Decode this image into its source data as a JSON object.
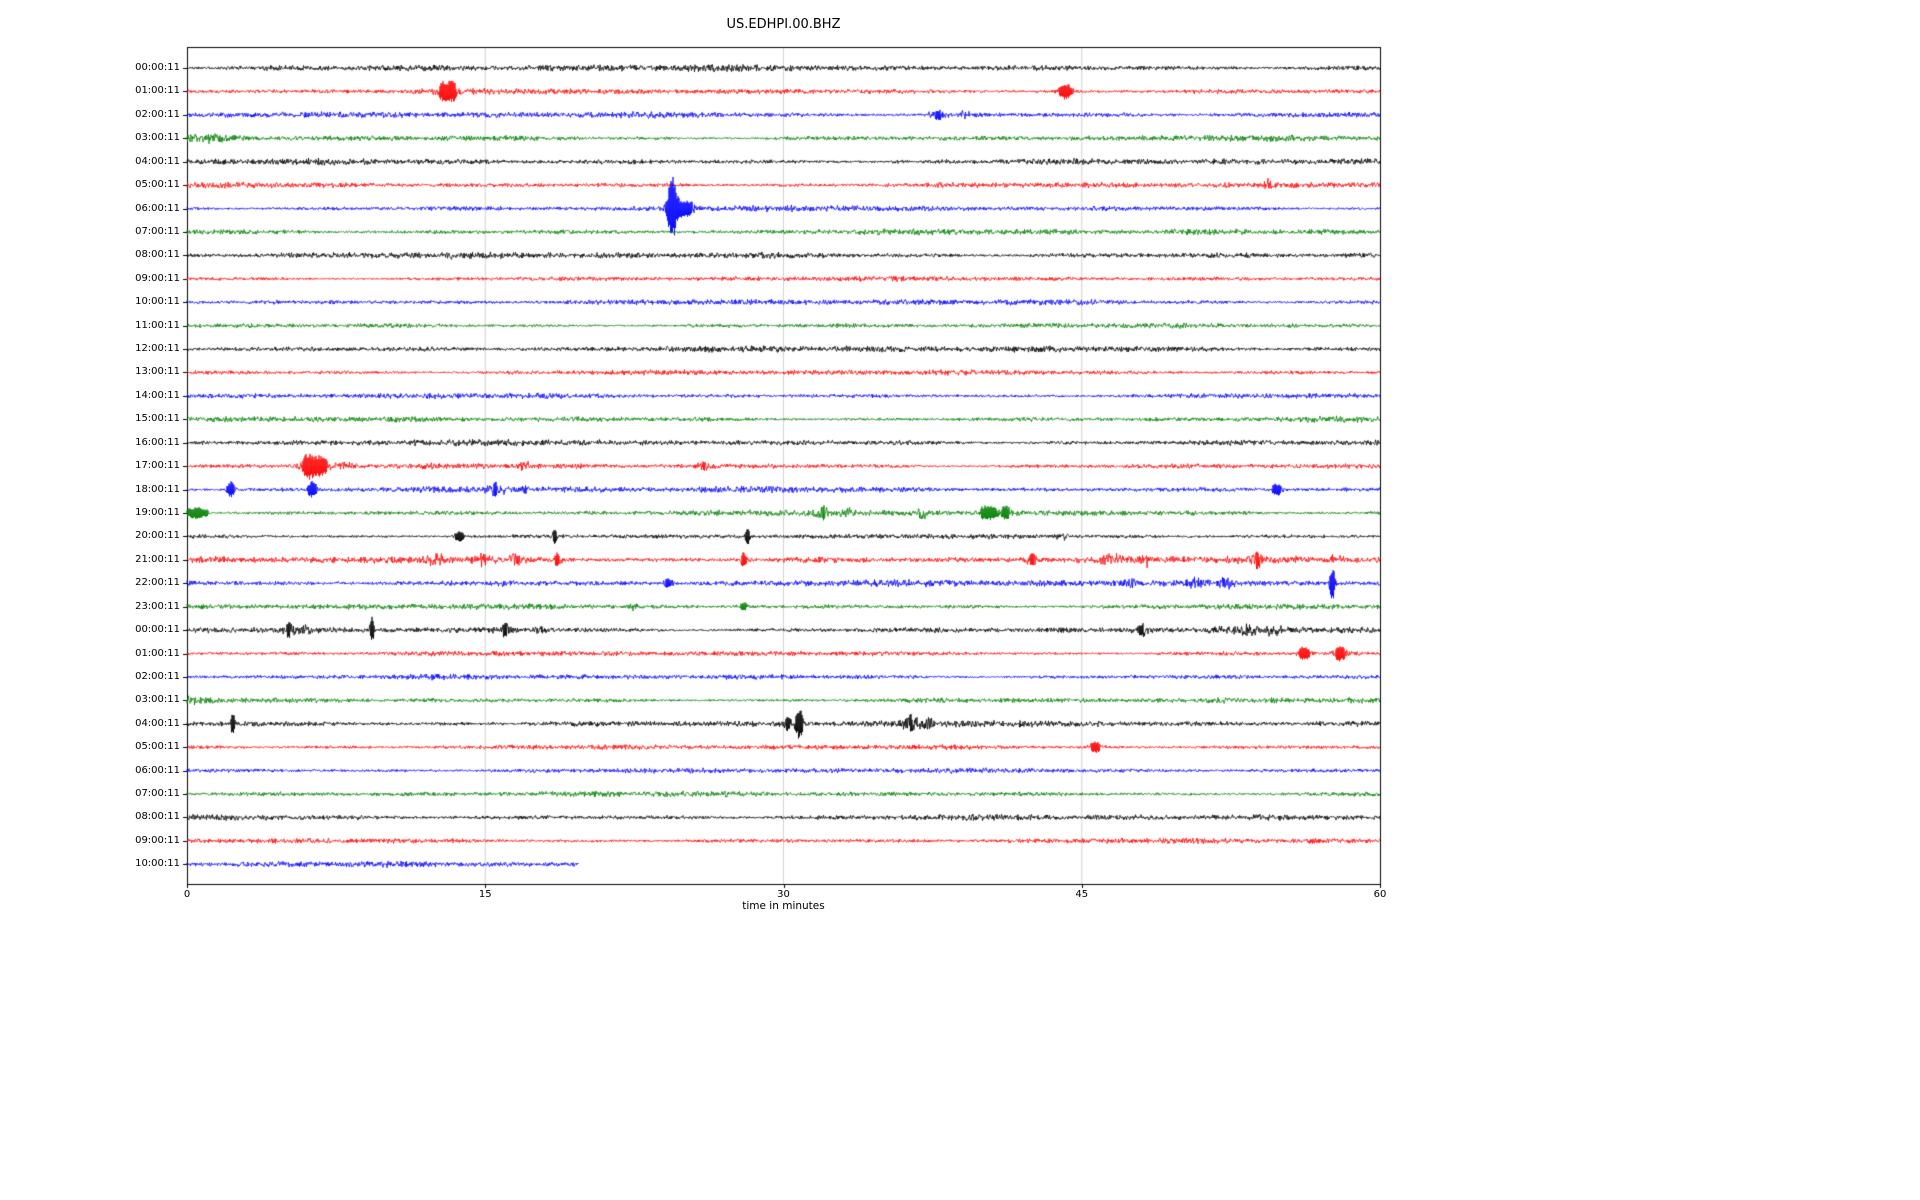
{
  "window": {
    "background": "#ffffff"
  },
  "chart_data": {
    "type": "line",
    "title": "US.EDHPI.00.BHZ",
    "xlabel": "time in minutes",
    "x_range": [
      0,
      60
    ],
    "x_ticks": [
      0,
      15,
      30,
      45,
      60
    ],
    "grid_minutes": [
      15,
      30,
      45
    ],
    "grid_color": "#c8c8c8",
    "legend": "none",
    "color_map": {
      "black": "#000000",
      "red": "#ff0000",
      "blue": "#0000ff",
      "green": "#008000"
    },
    "rows": [
      {
        "label": "00:00:11",
        "color": "black",
        "base": 2.2,
        "events": []
      },
      {
        "label": "01:00:11",
        "color": "red",
        "base": 1.8,
        "events": [
          {
            "m": 12.9,
            "a": 5,
            "w": 0.4
          },
          {
            "m": 13.4,
            "a": 4,
            "w": 0.3
          },
          {
            "m": 44.2,
            "a": 5,
            "w": 0.35
          }
        ]
      },
      {
        "label": "02:00:11",
        "color": "blue",
        "base": 2.0,
        "events": [
          {
            "m": 37.8,
            "a": 2.5,
            "w": 0.5
          },
          {
            "m": 39.1,
            "a": 2.5,
            "w": 0.3
          }
        ]
      },
      {
        "label": "03:00:11",
        "color": "green",
        "base": 1.9,
        "events": [
          {
            "m": 1,
            "a": 2,
            "w": 1
          }
        ]
      },
      {
        "label": "04:00:11",
        "color": "black",
        "base": 2.0,
        "events": []
      },
      {
        "label": "05:00:11",
        "color": "red",
        "base": 1.8,
        "events": [
          {
            "m": 54.4,
            "a": 3.5,
            "w": 0.25
          }
        ]
      },
      {
        "label": "06:00:11",
        "color": "blue",
        "base": 1.8,
        "events": [
          {
            "m": 24.4,
            "a": 20,
            "w": 0.22
          },
          {
            "m": 24.9,
            "a": 5,
            "w": 0.7
          }
        ]
      },
      {
        "label": "07:00:11",
        "color": "green",
        "base": 1.9,
        "events": []
      },
      {
        "label": "08:00:11",
        "color": "black",
        "base": 2.1,
        "events": []
      },
      {
        "label": "09:00:11",
        "color": "red",
        "base": 1.6,
        "events": []
      },
      {
        "label": "10:00:11",
        "color": "blue",
        "base": 1.9,
        "events": []
      },
      {
        "label": "11:00:11",
        "color": "green",
        "base": 1.6,
        "events": []
      },
      {
        "label": "12:00:11",
        "color": "black",
        "base": 2.1,
        "events": []
      },
      {
        "label": "13:00:11",
        "color": "red",
        "base": 1.7,
        "events": []
      },
      {
        "label": "14:00:11",
        "color": "blue",
        "base": 1.7,
        "events": []
      },
      {
        "label": "15:00:11",
        "color": "green",
        "base": 1.8,
        "events": []
      },
      {
        "label": "16:00:11",
        "color": "black",
        "base": 2.0,
        "events": []
      },
      {
        "label": "17:00:11",
        "color": "red",
        "base": 1.8,
        "events": [
          {
            "m": 6.1,
            "a": 8,
            "w": 0.3
          },
          {
            "m": 6.7,
            "a": 6,
            "w": 0.4
          },
          {
            "m": 7.9,
            "a": 3,
            "w": 0.4
          },
          {
            "m": 17,
            "a": 2.5,
            "w": 0.3
          },
          {
            "m": 26,
            "a": 3,
            "w": 0.3
          }
        ]
      },
      {
        "label": "18:00:11",
        "color": "blue",
        "base": 2.0,
        "events": [
          {
            "m": 2.2,
            "a": 5,
            "w": 0.2
          },
          {
            "m": 6.3,
            "a": 5,
            "w": 0.25
          },
          {
            "m": 15.5,
            "a": 3.5,
            "w": 0.6
          },
          {
            "m": 16.9,
            "a": 3,
            "w": 0.3
          },
          {
            "m": 54.8,
            "a": 4,
            "w": 0.25
          }
        ]
      },
      {
        "label": "19:00:11",
        "color": "green",
        "base": 1.8,
        "events": [
          {
            "m": 0.5,
            "a": 3.5,
            "w": 0.6
          },
          {
            "m": 32,
            "a": 3.5,
            "w": 0.4
          },
          {
            "m": 33.2,
            "a": 3,
            "w": 0.3
          },
          {
            "m": 37,
            "a": 3,
            "w": 0.4
          },
          {
            "m": 40.3,
            "a": 4.5,
            "w": 0.5
          },
          {
            "m": 41.2,
            "a": 3.5,
            "w": 0.3
          }
        ]
      },
      {
        "label": "20:00:11",
        "color": "black",
        "base": 1.5,
        "events": [
          {
            "m": 13.7,
            "a": 3,
            "w": 0.25
          },
          {
            "m": 18.5,
            "a": 4.5,
            "w": 0.12
          },
          {
            "m": 28.2,
            "a": 5,
            "w": 0.12
          },
          {
            "m": 44,
            "a": 2,
            "w": 0.3
          }
        ]
      },
      {
        "label": "21:00:11",
        "color": "red",
        "base": 2.4,
        "events": [
          {
            "m": 12.5,
            "a": 3.5,
            "w": 0.5
          },
          {
            "m": 14.8,
            "a": 4.5,
            "w": 0.3
          },
          {
            "m": 16.5,
            "a": 3.5,
            "w": 0.3
          },
          {
            "m": 18.6,
            "a": 3.5,
            "w": 0.25
          },
          {
            "m": 28,
            "a": 4.5,
            "w": 0.15
          },
          {
            "m": 42.5,
            "a": 3,
            "w": 0.4
          },
          {
            "m": 46.5,
            "a": 3.5,
            "w": 0.5
          },
          {
            "m": 48.3,
            "a": 3.5,
            "w": 0.3
          },
          {
            "m": 53.8,
            "a": 5.5,
            "w": 0.25
          },
          {
            "m": 57.8,
            "a": 3,
            "w": 0.3
          }
        ]
      },
      {
        "label": "22:00:11",
        "color": "blue",
        "base": 2.2,
        "events": [
          {
            "m": 16,
            "a": 2.5,
            "w": 0.3
          },
          {
            "m": 24.2,
            "a": 2.5,
            "w": 0.3
          },
          {
            "m": 47.3,
            "a": 3,
            "w": 0.4
          },
          {
            "m": 50.8,
            "a": 3.5,
            "w": 0.3
          },
          {
            "m": 52.3,
            "a": 3.5,
            "w": 0.3
          },
          {
            "m": 57.6,
            "a": 12,
            "w": 0.12
          }
        ]
      },
      {
        "label": "23:00:11",
        "color": "green",
        "base": 1.8,
        "events": [
          {
            "m": 22.4,
            "a": 2.2,
            "w": 0.3
          },
          {
            "m": 28,
            "a": 2.2,
            "w": 0.3
          }
        ]
      },
      {
        "label": "00:00:11",
        "color": "black",
        "base": 2.0,
        "events": [
          {
            "m": 5.1,
            "a": 4,
            "w": 0.3
          },
          {
            "m": 5.9,
            "a": 3.5,
            "w": 0.25
          },
          {
            "m": 9.3,
            "a": 9,
            "w": 0.1
          },
          {
            "m": 16,
            "a": 3.5,
            "w": 0.4
          },
          {
            "m": 17.8,
            "a": 2.5,
            "w": 0.3
          },
          {
            "m": 48,
            "a": 3.5,
            "w": 0.35
          },
          {
            "m": 53.3,
            "a": 3.5,
            "w": 0.5
          },
          {
            "m": 54.6,
            "a": 3.5,
            "w": 0.4
          }
        ]
      },
      {
        "label": "01:00:11",
        "color": "red",
        "base": 1.7,
        "events": [
          {
            "m": 56.2,
            "a": 4.5,
            "w": 0.3
          },
          {
            "m": 58,
            "a": 4.5,
            "w": 0.3
          }
        ]
      },
      {
        "label": "02:00:11",
        "color": "blue",
        "base": 1.7,
        "events": []
      },
      {
        "label": "03:00:11",
        "color": "green",
        "base": 1.7,
        "events": [
          {
            "m": 0.3,
            "a": 2.5,
            "w": 0.4
          }
        ]
      },
      {
        "label": "04:00:11",
        "color": "black",
        "base": 2.1,
        "events": [
          {
            "m": 2.3,
            "a": 7,
            "w": 0.1
          },
          {
            "m": 30.2,
            "a": 3.5,
            "w": 0.3
          },
          {
            "m": 30.8,
            "a": 10,
            "w": 0.18
          },
          {
            "m": 36.4,
            "a": 4.5,
            "w": 0.4
          },
          {
            "m": 37.3,
            "a": 4,
            "w": 0.3
          }
        ]
      },
      {
        "label": "05:00:11",
        "color": "red",
        "base": 1.6,
        "events": [
          {
            "m": 45.7,
            "a": 3,
            "w": 0.35
          }
        ]
      },
      {
        "label": "06:00:11",
        "color": "blue",
        "base": 1.7,
        "events": []
      },
      {
        "label": "07:00:11",
        "color": "green",
        "base": 1.7,
        "events": []
      },
      {
        "label": "08:00:11",
        "color": "black",
        "base": 1.9,
        "events": []
      },
      {
        "label": "09:00:11",
        "color": "red",
        "base": 1.7,
        "events": [
          {
            "m": 56.6,
            "a": 2,
            "w": 0.3
          }
        ]
      },
      {
        "label": "10:00:11",
        "color": "blue",
        "base": 1.8,
        "duration_min": 19.7,
        "events": []
      }
    ]
  }
}
